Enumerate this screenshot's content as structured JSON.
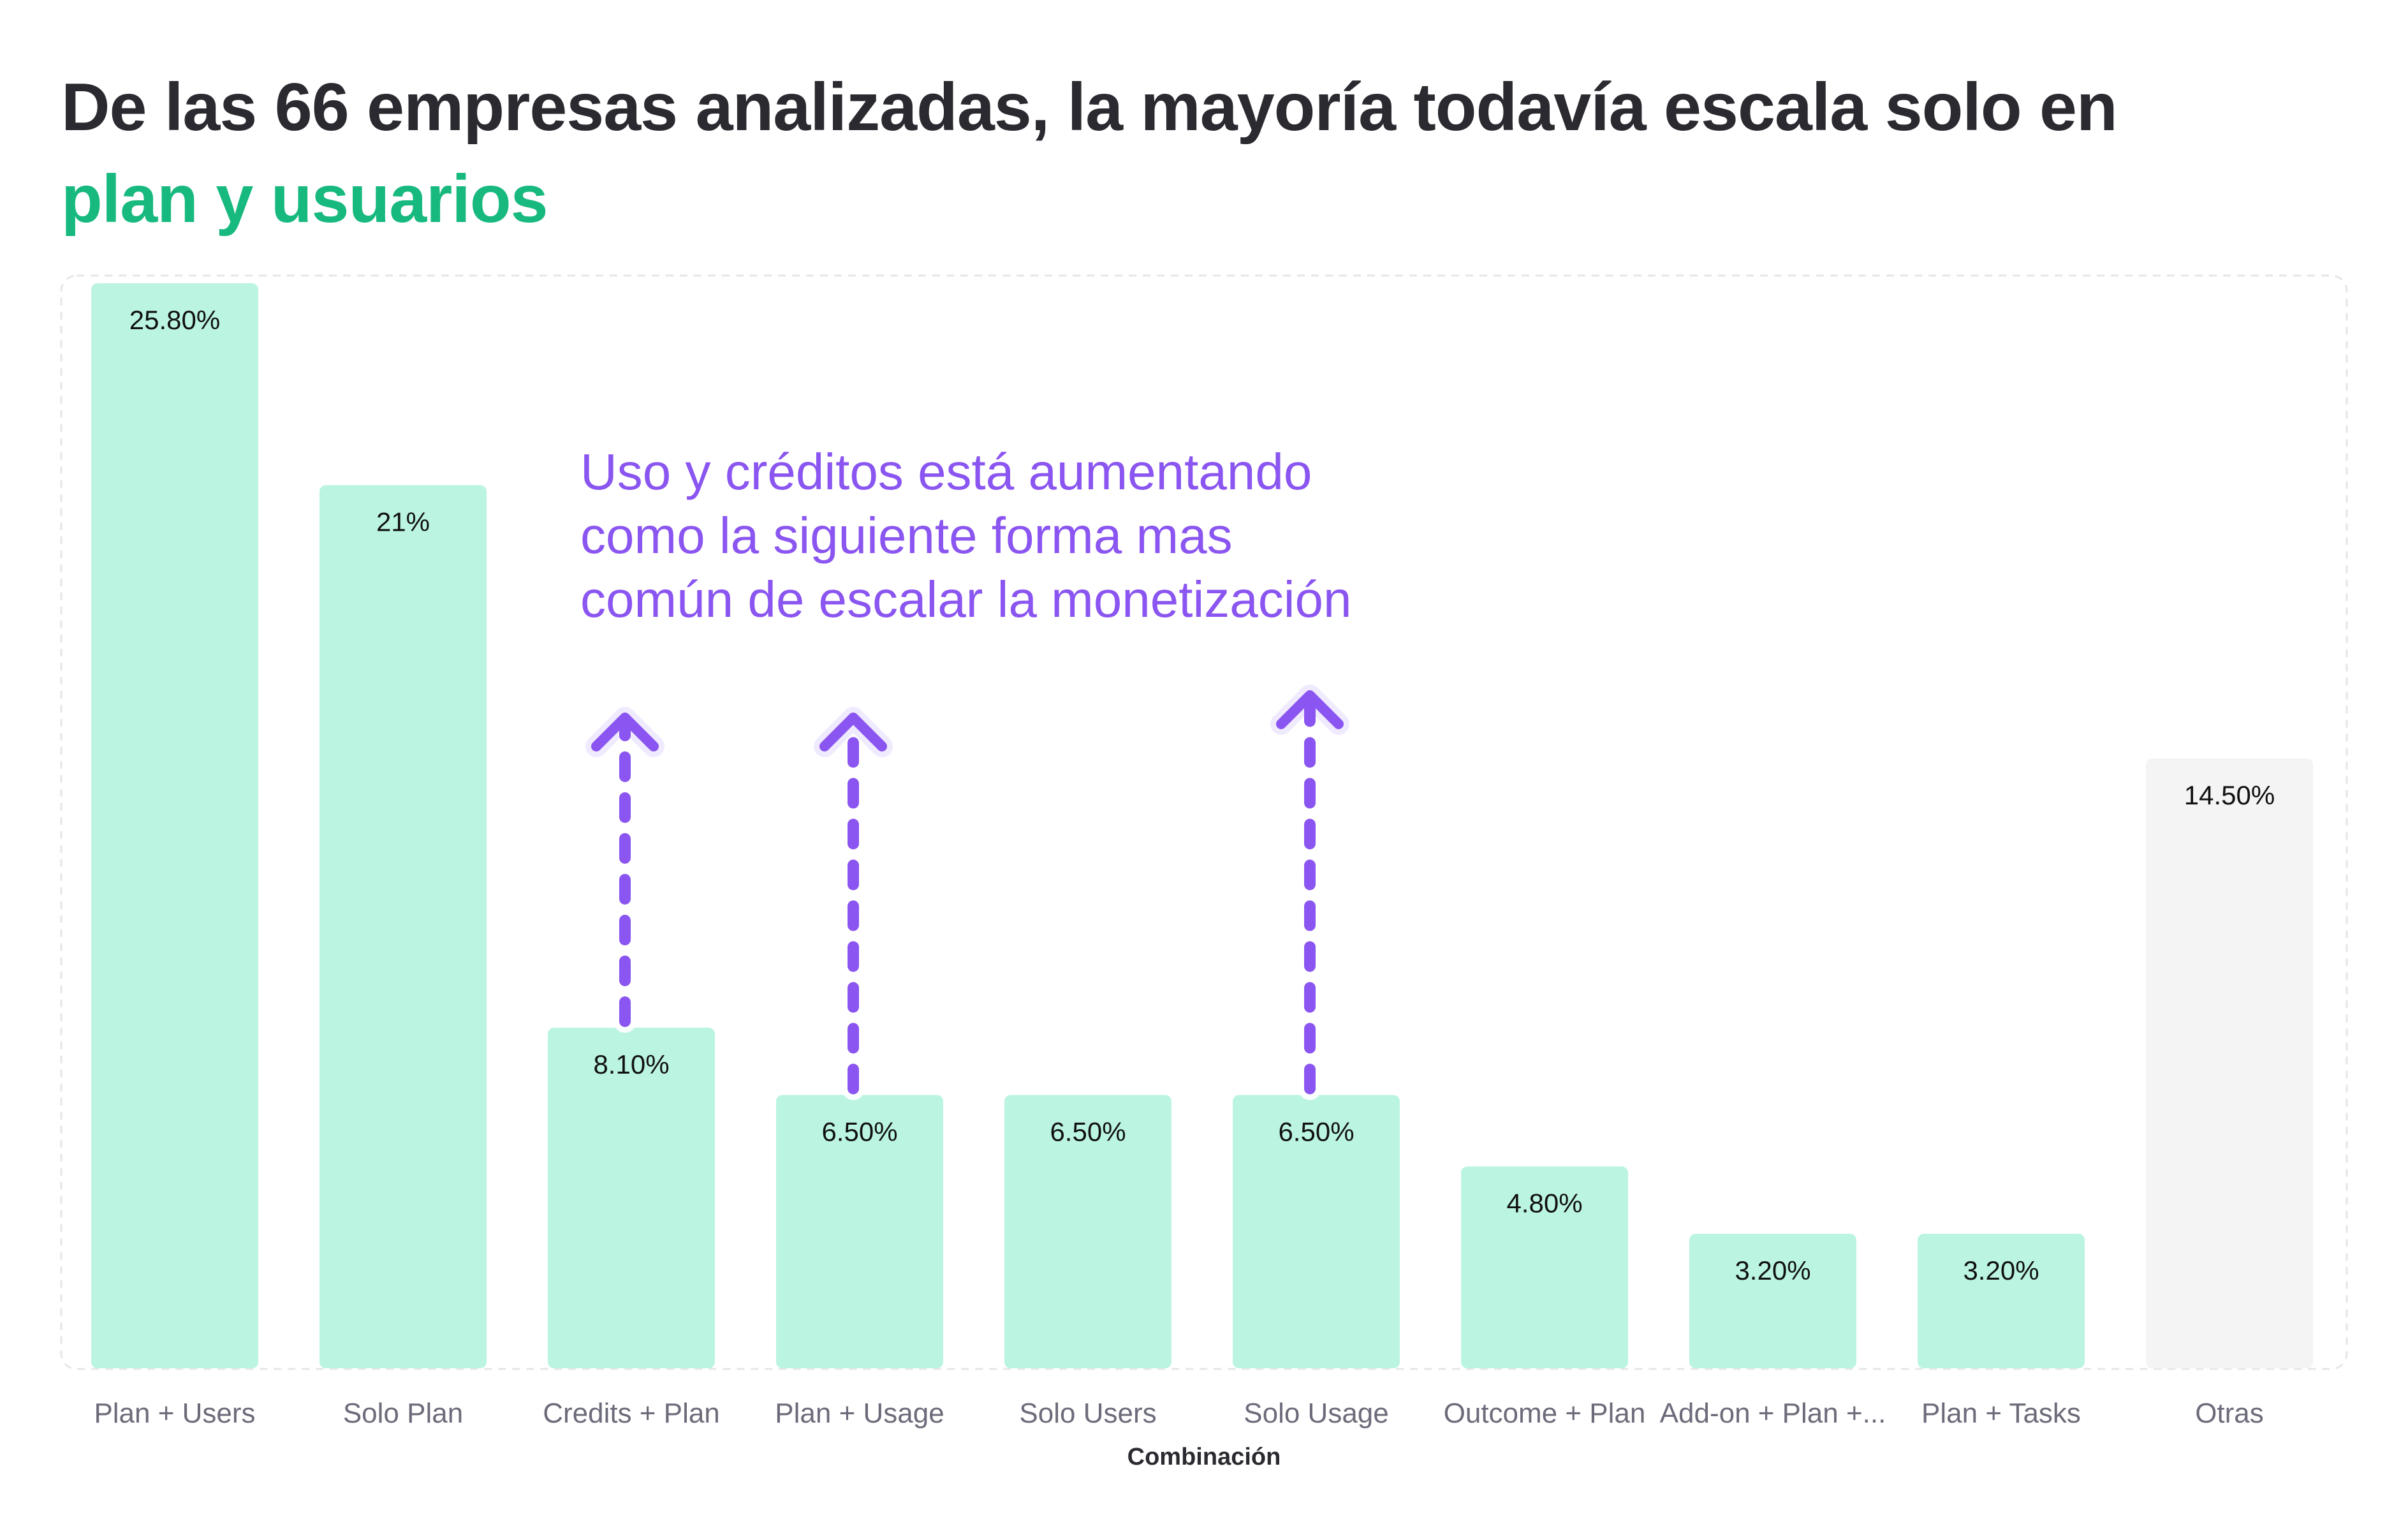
{
  "title": {
    "text": "De las 66 empresas analizadas, la mayoría todavía escala solo en",
    "highlight": "plan y usuarios"
  },
  "annotation": {
    "lines": [
      "Uso y créditos está aumentando",
      "como la siguiente forma mas",
      "común de escalar la monetización"
    ]
  },
  "colors": {
    "bar": "#bbf5e1",
    "other_bar": "#f4f4f4",
    "title_accent": "#17b97e",
    "annotation": "#8a55f0",
    "text": "#2a2a30"
  },
  "chart_data": {
    "type": "bar",
    "title": "De las 66 empresas analizadas, la mayoría todavía escala solo en plan y usuarios",
    "xlabel": "Combinación",
    "ylabel": "",
    "ylim": [
      0,
      25.8
    ],
    "grid": false,
    "categories": [
      "Plan + Users",
      "Solo Plan",
      "Credits + Plan",
      "Plan + Usage",
      "Solo Users",
      "Solo Usage",
      "Outcome + Plan",
      "Add-on + Plan +...",
      "Plan + Tasks",
      "Otras"
    ],
    "values": [
      25.8,
      21,
      8.1,
      6.5,
      6.5,
      6.5,
      4.8,
      3.2,
      3.2,
      14.5
    ],
    "data_labels": [
      "25.80%",
      "21%",
      "8.10%",
      "6.50%",
      "6.50%",
      "6.50%",
      "4.80%",
      "3.20%",
      "3.20%",
      "14.50%"
    ],
    "highlighted_categories": [
      "Credits + Plan",
      "Plan + Usage",
      "Solo Usage"
    ],
    "muted_categories": [
      "Otras"
    ]
  }
}
